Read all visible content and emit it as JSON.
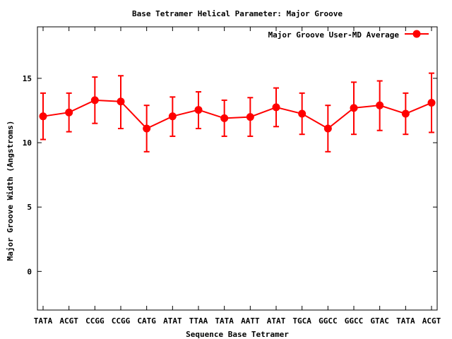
{
  "chart_data": {
    "type": "line",
    "title": "Base Tetramer Helical Parameter: Major Groove",
    "xlabel": "Sequence Base Tetramer",
    "ylabel": "Major Groove Width (Angstroms)",
    "categories": [
      "TATA",
      "ACGT",
      "CCGG",
      "CCGG",
      "CATG",
      "ATAT",
      "TTAA",
      "TATA",
      "AATT",
      "ATAT",
      "TGCA",
      "GGCC",
      "GGCC",
      "GTAC",
      "TATA",
      "ACGT"
    ],
    "ylim": [
      -3,
      19
    ],
    "yticks": [
      0,
      5,
      10,
      15
    ],
    "grid": false,
    "legend_position": "top-right",
    "series": [
      {
        "name": "Major Groove User-MD Average",
        "color": "#ff0000",
        "values": [
          12.05,
          12.35,
          13.3,
          13.2,
          11.1,
          12.05,
          12.55,
          11.9,
          12.0,
          12.75,
          12.25,
          11.1,
          12.7,
          12.9,
          12.25,
          13.1
        ],
        "error_low": [
          10.25,
          10.85,
          11.5,
          11.1,
          9.3,
          10.5,
          11.1,
          10.5,
          10.5,
          11.25,
          10.65,
          9.3,
          10.65,
          10.95,
          10.65,
          10.8
        ],
        "error_high": [
          13.85,
          13.85,
          15.1,
          15.2,
          12.9,
          13.55,
          13.95,
          13.3,
          13.5,
          14.25,
          13.85,
          12.9,
          14.7,
          14.8,
          13.85,
          15.4
        ]
      }
    ]
  }
}
